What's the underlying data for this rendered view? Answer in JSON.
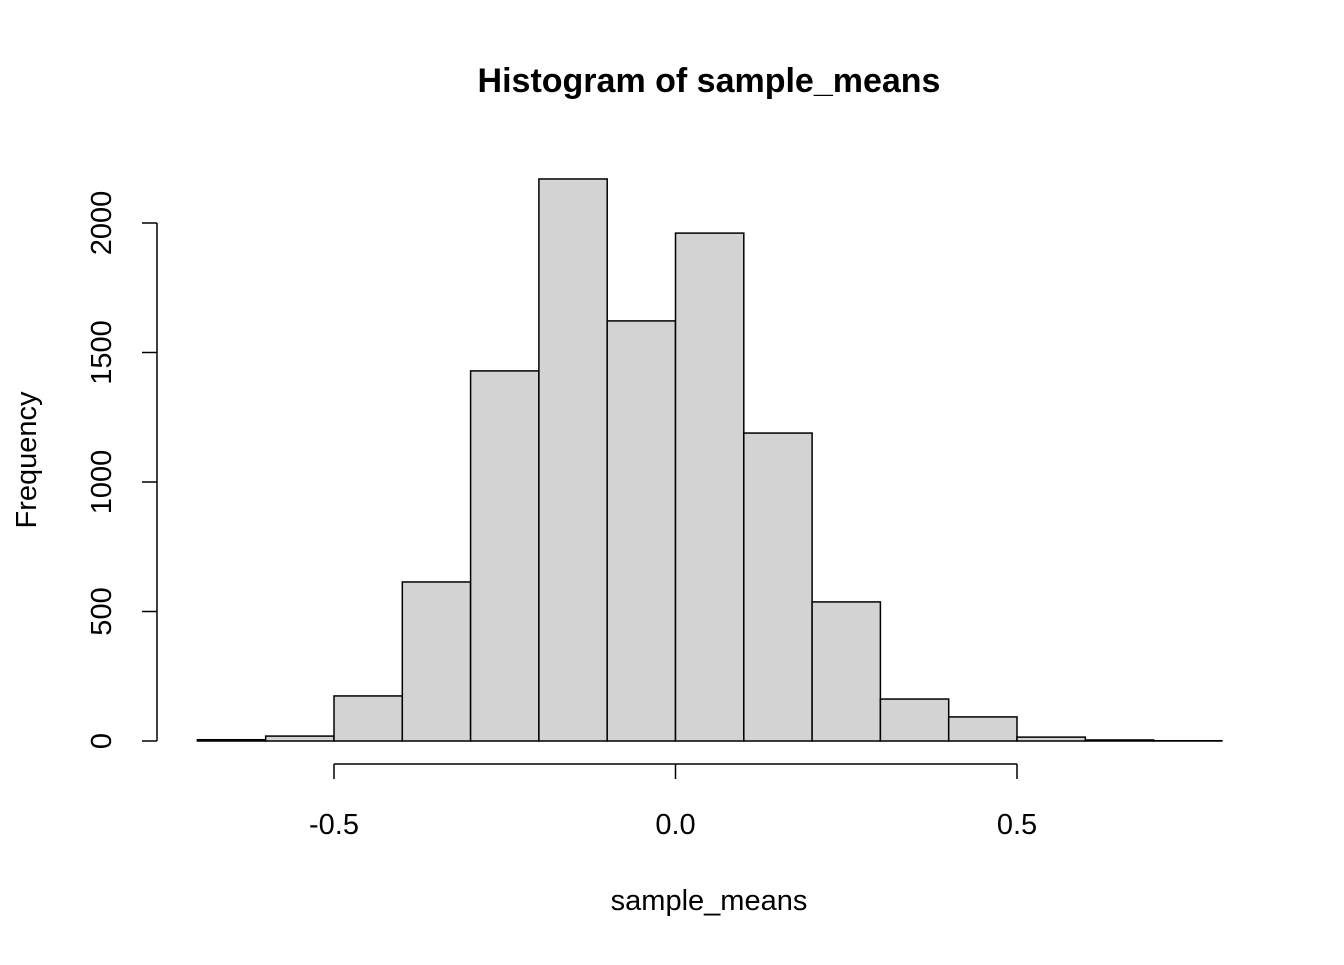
{
  "chart_data": {
    "type": "histogram",
    "title": "Histogram of sample_means",
    "x_label": "sample_means",
    "y_label": "Frequency",
    "bins": [
      -0.7,
      -0.6,
      -0.5,
      -0.4,
      -0.3,
      -0.2,
      -0.1,
      0,
      0.1,
      0.2,
      0.3,
      0.4,
      0.5,
      0.6,
      0.7,
      0.8
    ],
    "values": [
      5,
      19,
      174,
      614,
      1429,
      2170,
      1622,
      1961,
      1189,
      537,
      162,
      93,
      15,
      4,
      1
    ],
    "color": "#d3d3d3",
    "xlim": [
      -0.5,
      0.5
    ],
    "xticks": [
      -0.5,
      {
        "value": 0,
        "label": "0.0"
      },
      0.5
    ],
    "ylim": [
      0,
      2000
    ],
    "yticks": [
      0,
      500,
      1000,
      1500,
      2000
    ]
  }
}
